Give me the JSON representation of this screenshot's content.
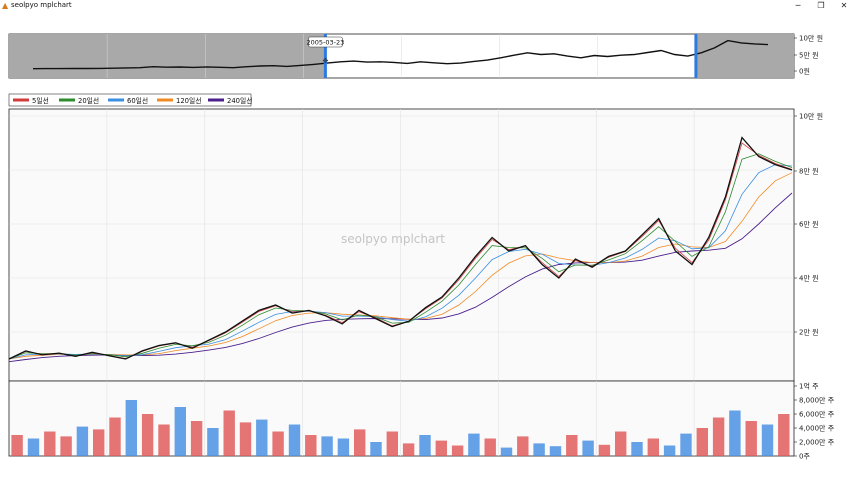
{
  "window": {
    "title": "seolpyo mplchart",
    "icon": "app-chart-icon",
    "minimize_glyph": "─",
    "restore_glyph": "❐",
    "close_glyph": "✕"
  },
  "slider": {
    "tooltip_date": "2005-03-23",
    "y_tick_labels": [
      "10만 원",
      "5만 원",
      "0원"
    ],
    "selection_start_fraction": 0.403,
    "selection_end_fraction": 0.875
  },
  "legend": {
    "items": [
      {
        "label": "5일선",
        "color": "#d33b3b"
      },
      {
        "label": "20일선",
        "color": "#2e8b2e"
      },
      {
        "label": "60일선",
        "color": "#3a8fe0"
      },
      {
        "label": "120일선",
        "color": "#f08a24"
      },
      {
        "label": "240일선",
        "color": "#4b1f8c"
      }
    ]
  },
  "watermark": "seolpyo mplchart",
  "price_axis": {
    "tick_labels": [
      "10만 원",
      "8만 원",
      "6만 원",
      "4만 원",
      "2만 원"
    ]
  },
  "volume_axis": {
    "tick_labels": [
      "1억 주",
      "8,000만 주",
      "6,000만 주",
      "4,000만 주",
      "2,000만 주",
      "0주"
    ]
  },
  "colors": {
    "rise": "#e05c5c",
    "fall": "#4a90e2",
    "price_line": "#111111",
    "slider_handle": "#2d7be0",
    "slider_outside": "#a9a9a9"
  },
  "chart_data": {
    "type": "line",
    "price_unit": "원",
    "price_ylim": [
      0,
      100000
    ],
    "price_series": [
      {
        "name": "price",
        "values": [
          10000,
          13000,
          11500,
          12200,
          11000,
          12500,
          11200,
          10000,
          13000,
          15000,
          16000,
          14000,
          17000,
          20000,
          24000,
          28000,
          30000,
          27000,
          28000,
          26000,
          23000,
          28000,
          25000,
          22000,
          24000,
          29000,
          33000,
          40000,
          48000,
          55000,
          50000,
          52000,
          45000,
          40000,
          47000,
          44000,
          48000,
          50000,
          56000,
          62000,
          50000,
          45000,
          55000,
          70000,
          92000,
          85000,
          82000,
          80000
        ]
      },
      {
        "name": "5일선",
        "values": [
          10000,
          12800,
          11700,
          12100,
          11100,
          12300,
          11300,
          10200,
          12800,
          14800,
          15900,
          14300,
          16800,
          19700,
          23600,
          27600,
          29700,
          27400,
          27900,
          26200,
          23500,
          27500,
          25300,
          22300,
          24000,
          28600,
          32600,
          39300,
          47300,
          54300,
          50500,
          51800,
          45700,
          40600,
          46500,
          44300,
          47700,
          49800,
          55400,
          61300,
          51000,
          45700,
          54000,
          69000,
          90000,
          85500,
          82400,
          80200
        ]
      },
      {
        "name": "20일선",
        "values": [
          10000,
          12300,
          12000,
          12000,
          11400,
          12000,
          11600,
          10800,
          12100,
          14000,
          15400,
          14900,
          16200,
          18800,
          22500,
          26400,
          28900,
          28000,
          27800,
          26700,
          24500,
          26300,
          25600,
          23300,
          23600,
          27300,
          31400,
          37400,
          45000,
          52000,
          51300,
          51200,
          47300,
          42300,
          44800,
          44700,
          46700,
          49000,
          53800,
          59000,
          53500,
          48000,
          51500,
          64500,
          84000,
          86000,
          83200,
          80900
        ]
      },
      {
        "name": "60일선",
        "values": [
          10000,
          11500,
          11800,
          11900,
          11700,
          11800,
          11600,
          11200,
          11600,
          12800,
          14200,
          14900,
          15500,
          17200,
          20300,
          23600,
          26500,
          27600,
          27700,
          27200,
          25900,
          25900,
          25700,
          24600,
          24000,
          25600,
          28800,
          33600,
          40000,
          46800,
          49800,
          50600,
          48800,
          45400,
          44800,
          44700,
          45700,
          47400,
          50600,
          54800,
          53800,
          50800,
          51200,
          57500,
          71000,
          79000,
          82000,
          81500
        ]
      },
      {
        "name": "120일선",
        "values": [
          10000,
          11000,
          11400,
          11700,
          11700,
          11700,
          11700,
          11500,
          11500,
          12000,
          13100,
          14000,
          14800,
          16100,
          18300,
          21200,
          24200,
          26100,
          27000,
          27200,
          26600,
          26300,
          26000,
          25300,
          24700,
          25000,
          26600,
          30000,
          35000,
          41000,
          45500,
          48200,
          48900,
          47400,
          46400,
          45700,
          45700,
          46300,
          48100,
          51300,
          52600,
          51500,
          51300,
          53500,
          61000,
          70000,
          76000,
          79000
        ]
      },
      {
        "name": "240일선",
        "values": [
          9000,
          9800,
          10500,
          11000,
          11300,
          11400,
          11500,
          11400,
          11300,
          11400,
          11800,
          12500,
          13300,
          14300,
          15700,
          17600,
          19800,
          21800,
          23300,
          24300,
          24700,
          24900,
          25000,
          24900,
          24700,
          24600,
          25200,
          26700,
          29200,
          32800,
          36800,
          40400,
          43300,
          45000,
          45600,
          45700,
          45700,
          45900,
          46600,
          48100,
          49500,
          50000,
          50300,
          51000,
          54500,
          60000,
          66000,
          71500
        ]
      }
    ],
    "volume_unit": "주",
    "volume_ylim": [
      0,
      100000000
    ],
    "volume_values": [
      30000000,
      25000000,
      35000000,
      28000000,
      42000000,
      38000000,
      55000000,
      80000000,
      60000000,
      45000000,
      70000000,
      50000000,
      40000000,
      65000000,
      48000000,
      52000000,
      35000000,
      45000000,
      30000000,
      28000000,
      25000000,
      38000000,
      20000000,
      35000000,
      18000000,
      30000000,
      22000000,
      15000000,
      32000000,
      25000000,
      12000000,
      28000000,
      18000000,
      14000000,
      30000000,
      22000000,
      16000000,
      35000000,
      20000000,
      25000000,
      15000000,
      32000000,
      40000000,
      55000000,
      65000000,
      50000000,
      45000000,
      60000000
    ],
    "volume_rise": [
      true,
      false,
      true,
      true,
      false,
      true,
      true,
      false,
      true,
      true,
      false,
      true,
      false,
      true,
      true,
      false,
      true,
      false,
      true,
      false,
      false,
      true,
      false,
      true,
      true,
      false,
      true,
      true,
      false,
      true,
      false,
      true,
      false,
      false,
      true,
      false,
      true,
      true,
      false,
      true,
      false,
      false,
      true,
      true,
      false,
      true,
      false,
      true
    ]
  }
}
